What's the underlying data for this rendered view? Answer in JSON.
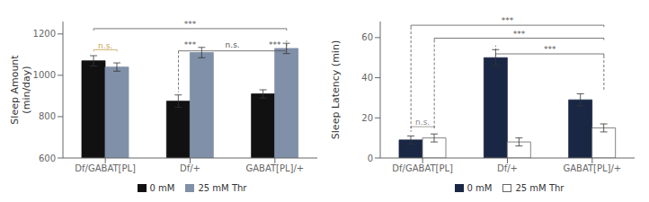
{
  "chart_data": [
    {
      "type": "bar",
      "categories": [
        "Df/GABAT[PL]",
        "Df/+",
        "GABAT[PL]/+"
      ],
      "series": [
        {
          "name": "0 mM",
          "color": "#111111",
          "values": [
            1070,
            875,
            910
          ],
          "errors": [
            25,
            30,
            20
          ]
        },
        {
          "name": "25 mM Thr",
          "color": "#8090a8",
          "values": [
            1040,
            1110,
            1130
          ],
          "errors": [
            20,
            25,
            25
          ]
        }
      ],
      "ylabel": "Sleep Amount\n(min/day)",
      "ylim": [
        600,
        1260
      ],
      "yticks": [
        600,
        800,
        1000,
        1200
      ],
      "grid": false,
      "legend": "bottom",
      "annotations": [
        {
          "text": "n.s.",
          "color": "#c8a050"
        },
        {
          "text": "***",
          "color": "#555555"
        },
        {
          "text": "n.s.",
          "color": "#555555"
        },
        {
          "text": "***",
          "color": "#555555"
        },
        {
          "text": "***",
          "color": "#555555"
        }
      ]
    },
    {
      "type": "bar",
      "categories": [
        "Df/GABAT[PL]",
        "Df/+",
        "GABAT[PL]/+"
      ],
      "series": [
        {
          "name": "0 mM",
          "color": "#1a2744",
          "values": [
            9,
            50,
            29
          ],
          "errors": [
            2,
            4,
            3
          ]
        },
        {
          "name": "25 mM Thr",
          "color": "#ffffff",
          "values": [
            10,
            8,
            15
          ],
          "errors": [
            2,
            2,
            2
          ]
        }
      ],
      "ylabel": "Sleep Latency (min)",
      "ylim": [
        0,
        68
      ],
      "yticks": [
        0,
        20,
        40,
        60
      ],
      "grid": false,
      "legend": "bottom",
      "annotations": [
        {
          "text": "n.s.",
          "color": "#888888"
        },
        {
          "text": "***",
          "color": "#555555"
        },
        {
          "text": "***",
          "color": "#555555"
        },
        {
          "text": "***",
          "color": "#555555"
        }
      ]
    }
  ]
}
